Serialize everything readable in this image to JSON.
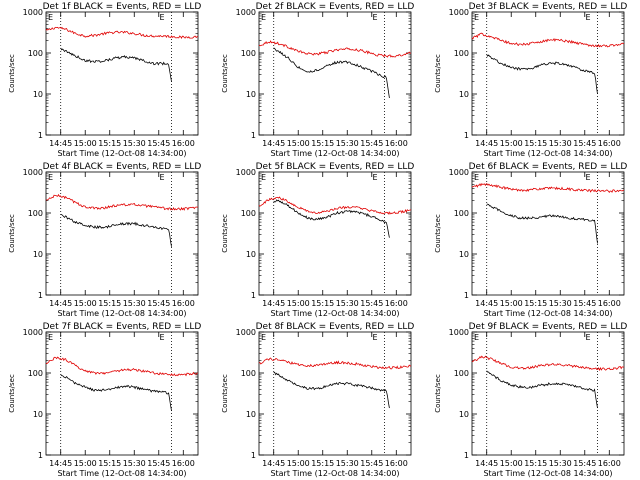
{
  "page": {
    "background": "#ffffff"
  },
  "colors": {
    "events": "#000000",
    "lld": "#e00000",
    "axes": "#000000"
  },
  "chart_data": [
    {
      "type": "line",
      "title": "Det 1f BLACK = Events, RED = LLD",
      "xlabel": "Start Time (12-Oct-08 14:34:00)",
      "ylabel": "Counts/sec",
      "yscale": "log",
      "ylim": [
        1,
        1000
      ],
      "yticks": [
        "1",
        "10",
        "100",
        "1000"
      ],
      "xticks": [
        "14:45",
        "15:00",
        "15:15",
        "15:30",
        "15:45",
        "16:00"
      ],
      "xlim": [
        14.6,
        16.15
      ],
      "vlines": [
        14.75,
        15.88
      ],
      "markers": [
        "E"
      ],
      "series": [
        {
          "name": "BLACK = Events",
          "color": "#000000",
          "x": [
            14.75,
            14.8,
            14.9,
            15.0,
            15.1,
            15.2,
            15.3,
            15.4,
            15.5,
            15.6,
            15.7,
            15.8,
            15.85,
            15.88
          ],
          "y": [
            130,
            110,
            85,
            65,
            62,
            65,
            75,
            80,
            75,
            65,
            55,
            55,
            55,
            20
          ]
        },
        {
          "name": "RED = LLD",
          "color": "#e00000",
          "x": [
            14.6,
            14.7,
            14.8,
            14.9,
            15.0,
            15.1,
            15.2,
            15.3,
            15.4,
            15.5,
            15.6,
            15.7,
            15.8,
            15.9,
            16.0,
            16.15
          ],
          "y": [
            350,
            420,
            380,
            300,
            260,
            270,
            300,
            320,
            320,
            300,
            270,
            260,
            260,
            250,
            240,
            250
          ]
        }
      ]
    },
    {
      "type": "line",
      "title": "Det 2f BLACK = Events, RED = LLD",
      "xlabel": "Start Time (12-Oct-08 14:34:00)",
      "ylabel": "Counts/sec",
      "yscale": "log",
      "ylim": [
        1,
        1000
      ],
      "yticks": [
        "1",
        "10",
        "100",
        "1000"
      ],
      "xticks": [
        "14:45",
        "15:00",
        "15:15",
        "15:30",
        "15:45",
        "16:00"
      ],
      "xlim": [
        14.6,
        16.15
      ],
      "vlines": [
        14.75,
        15.88
      ],
      "markers": [
        "E"
      ],
      "series": [
        {
          "name": "BLACK = Events",
          "color": "#000000",
          "x": [
            14.75,
            14.8,
            14.9,
            15.0,
            15.1,
            15.2,
            15.3,
            15.4,
            15.5,
            15.6,
            15.7,
            15.8,
            15.85,
            15.9,
            15.93
          ],
          "y": [
            130,
            110,
            75,
            45,
            35,
            38,
            50,
            60,
            60,
            50,
            40,
            32,
            28,
            25,
            8
          ]
        },
        {
          "name": "RED = LLD",
          "color": "#e00000",
          "x": [
            14.6,
            14.7,
            14.8,
            14.9,
            15.0,
            15.1,
            15.2,
            15.3,
            15.4,
            15.5,
            15.6,
            15.7,
            15.8,
            15.9,
            16.0,
            16.15
          ],
          "y": [
            150,
            190,
            170,
            140,
            110,
            95,
            95,
            105,
            120,
            125,
            120,
            105,
            90,
            85,
            85,
            100
          ]
        }
      ]
    },
    {
      "type": "line",
      "title": "Det 3f BLACK = Events, RED = LLD",
      "xlabel": "Start Time (12-Oct-08 14:34:00)",
      "ylabel": "Counts/sec",
      "yscale": "log",
      "ylim": [
        1,
        1000
      ],
      "yticks": [
        "1",
        "10",
        "100",
        "1000"
      ],
      "xticks": [
        "14:45",
        "15:00",
        "15:15",
        "15:30",
        "15:45",
        "16:00"
      ],
      "xlim": [
        14.6,
        16.15
      ],
      "vlines": [
        14.75,
        15.88
      ],
      "markers": [
        "E"
      ],
      "series": [
        {
          "name": "BLACK = Events",
          "color": "#000000",
          "x": [
            14.75,
            14.8,
            14.9,
            15.0,
            15.1,
            15.2,
            15.3,
            15.4,
            15.5,
            15.6,
            15.7,
            15.8,
            15.85,
            15.88
          ],
          "y": [
            90,
            75,
            55,
            45,
            40,
            42,
            50,
            58,
            55,
            48,
            40,
            35,
            32,
            10
          ]
        },
        {
          "name": "RED = LLD",
          "color": "#e00000",
          "x": [
            14.6,
            14.7,
            14.8,
            14.9,
            15.0,
            15.1,
            15.2,
            15.3,
            15.4,
            15.5,
            15.6,
            15.7,
            15.8,
            15.9,
            16.0,
            16.15
          ],
          "y": [
            230,
            290,
            250,
            200,
            170,
            160,
            170,
            190,
            210,
            205,
            190,
            170,
            155,
            150,
            150,
            170
          ]
        }
      ]
    },
    {
      "type": "line",
      "title": "Det 4f BLACK = Events, RED = LLD",
      "xlabel": "Start Time (12-Oct-08 14:34:00)",
      "ylabel": "Counts/sec",
      "yscale": "log",
      "ylim": [
        1,
        1000
      ],
      "yticks": [
        "1",
        "10",
        "100",
        "1000"
      ],
      "xticks": [
        "14:45",
        "15:00",
        "15:15",
        "15:30",
        "15:45",
        "16:00"
      ],
      "xlim": [
        14.6,
        16.15
      ],
      "vlines": [
        14.75,
        15.88
      ],
      "markers": [
        "E"
      ],
      "series": [
        {
          "name": "BLACK = Events",
          "color": "#000000",
          "x": [
            14.75,
            14.8,
            14.9,
            15.0,
            15.1,
            15.2,
            15.3,
            15.4,
            15.5,
            15.6,
            15.7,
            15.8,
            15.85,
            15.88
          ],
          "y": [
            90,
            80,
            60,
            50,
            45,
            45,
            50,
            55,
            55,
            50,
            45,
            42,
            40,
            15
          ]
        },
        {
          "name": "RED = LLD",
          "color": "#e00000",
          "x": [
            14.6,
            14.7,
            14.8,
            14.9,
            15.0,
            15.1,
            15.2,
            15.3,
            15.4,
            15.5,
            15.6,
            15.7,
            15.8,
            15.9,
            16.0,
            16.15
          ],
          "y": [
            200,
            270,
            240,
            180,
            140,
            130,
            135,
            150,
            160,
            160,
            150,
            140,
            130,
            125,
            125,
            140
          ]
        }
      ]
    },
    {
      "type": "line",
      "title": "Det 5f BLACK = Events, RED = LLD",
      "xlabel": "Start Time (12-Oct-08 14:34:00)",
      "ylabel": "Counts/sec",
      "yscale": "log",
      "ylim": [
        1,
        1000
      ],
      "yticks": [
        "1",
        "10",
        "100",
        "1000"
      ],
      "xticks": [
        "14:45",
        "15:00",
        "15:15",
        "15:30",
        "15:45",
        "16:00"
      ],
      "xlim": [
        14.6,
        16.15
      ],
      "vlines": [
        14.75,
        15.88
      ],
      "markers": [
        "E"
      ],
      "series": [
        {
          "name": "BLACK = Events",
          "color": "#000000",
          "x": [
            14.75,
            14.8,
            14.9,
            15.0,
            15.1,
            15.2,
            15.3,
            15.4,
            15.5,
            15.6,
            15.7,
            15.8,
            15.85,
            15.9,
            15.93
          ],
          "y": [
            190,
            200,
            150,
            100,
            75,
            70,
            80,
            100,
            110,
            105,
            90,
            75,
            65,
            60,
            25
          ]
        },
        {
          "name": "RED = LLD",
          "color": "#e00000",
          "x": [
            14.6,
            14.7,
            14.8,
            14.9,
            15.0,
            15.1,
            15.2,
            15.3,
            15.4,
            15.5,
            15.6,
            15.7,
            15.8,
            15.9,
            16.0,
            16.15
          ],
          "y": [
            150,
            210,
            240,
            190,
            140,
            110,
            100,
            110,
            130,
            140,
            135,
            120,
            105,
            100,
            100,
            120
          ]
        }
      ]
    },
    {
      "type": "line",
      "title": "Det 6f BLACK = Events, RED = LLD",
      "xlabel": "Start Time (12-Oct-08 14:34:00)",
      "ylabel": "Counts/sec",
      "yscale": "log",
      "ylim": [
        1,
        1000
      ],
      "yticks": [
        "1",
        "10",
        "100",
        "1000"
      ],
      "xticks": [
        "14:45",
        "15:00",
        "15:15",
        "15:30",
        "15:45",
        "16:00"
      ],
      "xlim": [
        14.6,
        16.15
      ],
      "vlines": [
        14.75,
        15.88
      ],
      "markers": [
        "E"
      ],
      "series": [
        {
          "name": "BLACK = Events",
          "color": "#000000",
          "x": [
            14.75,
            14.8,
            14.9,
            15.0,
            15.1,
            15.2,
            15.3,
            15.4,
            15.5,
            15.6,
            15.7,
            15.8,
            15.85,
            15.88
          ],
          "y": [
            160,
            140,
            110,
            85,
            75,
            75,
            80,
            85,
            82,
            75,
            70,
            68,
            66,
            18
          ]
        },
        {
          "name": "RED = LLD",
          "color": "#e00000",
          "x": [
            14.6,
            14.7,
            14.8,
            14.9,
            15.0,
            15.1,
            15.2,
            15.3,
            15.4,
            15.5,
            15.6,
            15.7,
            15.8,
            15.9,
            16.0,
            16.15
          ],
          "y": [
            420,
            500,
            480,
            420,
            380,
            360,
            370,
            390,
            400,
            395,
            380,
            360,
            350,
            345,
            340,
            360
          ]
        }
      ]
    },
    {
      "type": "line",
      "title": "Det 7f BLACK = Events, RED = LLD",
      "xlabel": "Start Time (12-Oct-08 14:34:00)",
      "ylabel": "Counts/sec",
      "yscale": "log",
      "ylim": [
        1,
        1000
      ],
      "yticks": [
        "1",
        "10",
        "100",
        "1000"
      ],
      "xticks": [
        "14:45",
        "15:00",
        "15:15",
        "15:30",
        "15:45",
        "16:00"
      ],
      "xlim": [
        14.6,
        16.15
      ],
      "vlines": [
        14.75,
        15.88
      ],
      "markers": [
        "E"
      ],
      "series": [
        {
          "name": "BLACK = Events",
          "color": "#000000",
          "x": [
            14.75,
            14.8,
            14.9,
            15.0,
            15.1,
            15.2,
            15.3,
            15.4,
            15.5,
            15.6,
            15.7,
            15.8,
            15.85,
            15.88
          ],
          "y": [
            90,
            80,
            55,
            45,
            38,
            38,
            42,
            48,
            45,
            40,
            36,
            34,
            32,
            12
          ]
        },
        {
          "name": "RED = LLD",
          "color": "#e00000",
          "x": [
            14.6,
            14.7,
            14.8,
            14.9,
            15.0,
            15.1,
            15.2,
            15.3,
            15.4,
            15.5,
            15.6,
            15.7,
            15.8,
            15.9,
            16.0,
            16.15
          ],
          "y": [
            170,
            240,
            210,
            150,
            115,
            100,
            100,
            110,
            120,
            120,
            110,
            100,
            95,
            90,
            90,
            100
          ]
        }
      ]
    },
    {
      "type": "line",
      "title": "Det 8f BLACK = Events, RED = LLD",
      "xlabel": "Start Time (12-Oct-08 14:34:00)",
      "ylabel": "Counts/sec",
      "yscale": "log",
      "ylim": [
        1,
        1000
      ],
      "yticks": [
        "1",
        "10",
        "100",
        "1000"
      ],
      "xticks": [
        "14:45",
        "15:00",
        "15:15",
        "15:30",
        "15:45",
        "16:00"
      ],
      "xlim": [
        14.6,
        16.15
      ],
      "vlines": [
        14.75,
        15.88
      ],
      "markers": [
        "E"
      ],
      "series": [
        {
          "name": "BLACK = Events",
          "color": "#000000",
          "x": [
            14.75,
            14.8,
            14.9,
            15.0,
            15.1,
            15.2,
            15.3,
            15.4,
            15.5,
            15.6,
            15.7,
            15.8,
            15.85,
            15.9,
            15.93
          ],
          "y": [
            100,
            90,
            65,
            50,
            42,
            42,
            48,
            55,
            55,
            50,
            45,
            40,
            38,
            36,
            14
          ]
        },
        {
          "name": "RED = LLD",
          "color": "#e00000",
          "x": [
            14.6,
            14.7,
            14.8,
            14.9,
            15.0,
            15.1,
            15.2,
            15.3,
            15.4,
            15.5,
            15.6,
            15.7,
            15.8,
            15.9,
            16.0,
            16.15
          ],
          "y": [
            170,
            220,
            210,
            180,
            160,
            150,
            155,
            170,
            180,
            175,
            165,
            150,
            140,
            135,
            135,
            150
          ]
        }
      ]
    },
    {
      "type": "line",
      "title": "Det 9f BLACK = Events, RED = LLD",
      "xlabel": "Start Time (12-Oct-08 14:34:00)",
      "ylabel": "Counts/sec",
      "yscale": "log",
      "ylim": [
        1,
        1000
      ],
      "yticks": [
        "1",
        "10",
        "100",
        "1000"
      ],
      "xticks": [
        "14:45",
        "15:00",
        "15:15",
        "15:30",
        "15:45",
        "16:00"
      ],
      "xlim": [
        14.6,
        16.15
      ],
      "vlines": [
        14.75,
        15.88
      ],
      "markers": [
        "E"
      ],
      "series": [
        {
          "name": "BLACK = Events",
          "color": "#000000",
          "x": [
            14.75,
            14.8,
            14.9,
            15.0,
            15.1,
            15.2,
            15.3,
            15.4,
            15.5,
            15.6,
            15.7,
            15.8,
            15.85,
            15.88
          ],
          "y": [
            110,
            90,
            65,
            50,
            45,
            45,
            50,
            55,
            55,
            50,
            44,
            40,
            38,
            14
          ]
        },
        {
          "name": "RED = LLD",
          "color": "#e00000",
          "x": [
            14.6,
            14.7,
            14.8,
            14.9,
            15.0,
            15.1,
            15.2,
            15.3,
            15.4,
            15.5,
            15.6,
            15.7,
            15.8,
            15.9,
            16.0,
            16.15
          ],
          "y": [
            190,
            250,
            220,
            170,
            140,
            130,
            135,
            150,
            160,
            160,
            150,
            140,
            130,
            125,
            125,
            140
          ]
        }
      ]
    }
  ]
}
